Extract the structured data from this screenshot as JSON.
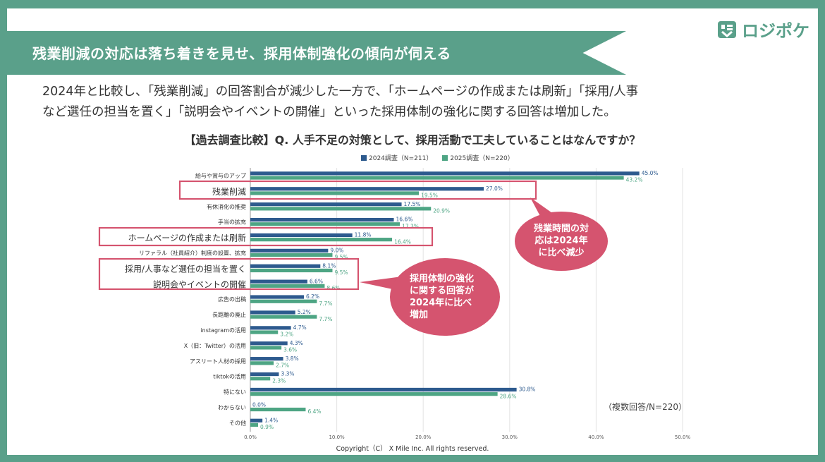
{
  "header": {
    "title": "残業削減の対応は落ち着きを見せ、採用体制強化の傾向が伺える"
  },
  "brand": {
    "name": "ロジポケ",
    "color": "#5aa08a"
  },
  "lead": {
    "line1": "2024年と比較し、「残業削減」の回答割合が減少した一方で、「ホームページの作成または刷新」「採用/人事",
    "line2": "など選任の担当を置く」「説明会やイベントの開催」といった採用体制の強化に関する回答は増加した。"
  },
  "chart_data": {
    "type": "bar",
    "orientation": "horizontal",
    "title": "【過去調査比較】Q. 人手不足の対策として、採用活動で工夫していることはなんですか？",
    "categories": [
      "給与や賞与のアップ",
      "残業削減",
      "有休消化の推奨",
      "手当の拡充",
      "ホームページの作成または刷新",
      "リファラル（社員紹介）制度の設置、拡充",
      "採用/人事など選任の担当を置く",
      "説明会やイベントの開催",
      "広告の出稿",
      "長距離の廃止",
      "instagramの活用",
      "X（旧：Twitter）の活用",
      "アスリート人材の採用",
      "tiktokの活用",
      "特にない",
      "わからない",
      "その他"
    ],
    "series": [
      {
        "name": "2024調査（N=211）",
        "color": "#2d5a8e",
        "values": [
          45.0,
          27.0,
          17.5,
          16.6,
          11.8,
          9.0,
          8.1,
          6.6,
          6.2,
          5.2,
          4.7,
          4.3,
          3.8,
          3.3,
          30.8,
          0.0,
          1.4
        ]
      },
      {
        "name": "2025調査（N=220）",
        "color": "#4ea584",
        "values": [
          43.2,
          19.5,
          20.9,
          17.3,
          16.4,
          9.5,
          9.5,
          8.6,
          7.7,
          7.7,
          3.2,
          3.6,
          2.7,
          2.3,
          28.6,
          6.4,
          0.9
        ]
      }
    ],
    "xlim": [
      0,
      50
    ],
    "xticks": [
      "0.0%",
      "10.0%",
      "20.0%",
      "30.0%",
      "40.0%",
      "50.0%"
    ],
    "highlighted": [
      "残業削減",
      "ホームページの作成または刷新",
      "採用/人事など選任の担当を置く",
      "説明会やイベントの開催"
    ],
    "callouts": [
      {
        "lines": [
          "残業時間の対",
          "応は2024年",
          "に比べ減少"
        ]
      },
      {
        "lines": [
          "採用体制の強化",
          "に関する回答が",
          "2024年に比べ",
          "増加"
        ]
      }
    ],
    "note": "（複数回答/N=220）"
  },
  "footer": {
    "copyright": "Copyright（C） X Mile Inc. All rights reserved."
  },
  "colors": {
    "accent": "#5aa08a",
    "callout": "#d5546f",
    "s2024": "#2d5a8e",
    "s2025": "#4ea584"
  }
}
